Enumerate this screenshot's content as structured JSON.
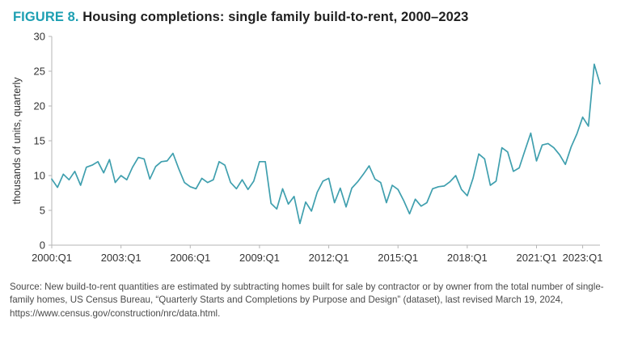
{
  "title": {
    "prefix": "FIGURE 8.",
    "text": " Housing completions: single family build-to-rent, 2000–2023"
  },
  "colors": {
    "accent_teal": "#1d9fb2",
    "line": "#3f9fae",
    "axis": "#b5b5b5",
    "tick_text": "#333333"
  },
  "chart_data": {
    "type": "line",
    "title": "Housing completions: single family build-to-rent, 2000–2023",
    "xlabel": "",
    "ylabel": "thousands of units, quarterly",
    "ylim": [
      0,
      30
    ],
    "yticks": [
      0,
      5,
      10,
      15,
      20,
      25,
      30
    ],
    "x_unit": "quarter",
    "x_start": "2000:Q1",
    "x_end": "2023:Q4",
    "x_tick_labels": [
      "2000:Q1",
      "2003:Q1",
      "2006:Q1",
      "2009:Q1",
      "2012:Q1",
      "2015:Q1",
      "2018:Q1",
      "2021:Q1",
      "2023:Q1"
    ],
    "x_tick_indices": [
      0,
      12,
      24,
      36,
      48,
      60,
      72,
      84,
      92
    ],
    "grid": false,
    "legend": "none",
    "series": [
      {
        "name": "Single family build-to-rent completions",
        "values": [
          9.5,
          8.3,
          10.2,
          9.4,
          10.6,
          8.6,
          11.2,
          11.5,
          12.0,
          10.4,
          12.3,
          9.0,
          10.0,
          9.4,
          11.2,
          12.6,
          12.4,
          9.5,
          11.3,
          12.0,
          12.1,
          13.2,
          11.0,
          9.0,
          8.4,
          8.1,
          9.6,
          9.0,
          9.4,
          12.0,
          11.5,
          9.0,
          8.1,
          9.4,
          8.0,
          9.2,
          12.0,
          12.0,
          6.0,
          5.2,
          8.1,
          5.9,
          7.0,
          3.1,
          6.2,
          4.9,
          7.6,
          9.2,
          9.6,
          6.1,
          8.2,
          5.5,
          8.2,
          9.1,
          10.2,
          11.4,
          9.5,
          9.0,
          6.1,
          8.6,
          8.0,
          6.4,
          4.5,
          6.6,
          5.6,
          6.1,
          8.1,
          8.4,
          8.5,
          9.1,
          10.0,
          8.0,
          7.1,
          9.6,
          13.1,
          12.4,
          8.6,
          9.2,
          14.0,
          13.4,
          10.6,
          11.1,
          13.6,
          16.1,
          12.1,
          14.4,
          14.6,
          14.0,
          13.0,
          11.6,
          14.1,
          16.0,
          18.4,
          17.1,
          26.0,
          23.2
        ]
      }
    ]
  },
  "source": {
    "text": "Source: New build-to-rent quantities are estimated by subtracting homes built for sale by contractor or by owner from the total number of single-family homes, US Census Bureau, “Quarterly Starts and Completions by Purpose and Design” (dataset), last revised March 19, 2024, https://www.census.gov/construction/nrc/data.html."
  }
}
